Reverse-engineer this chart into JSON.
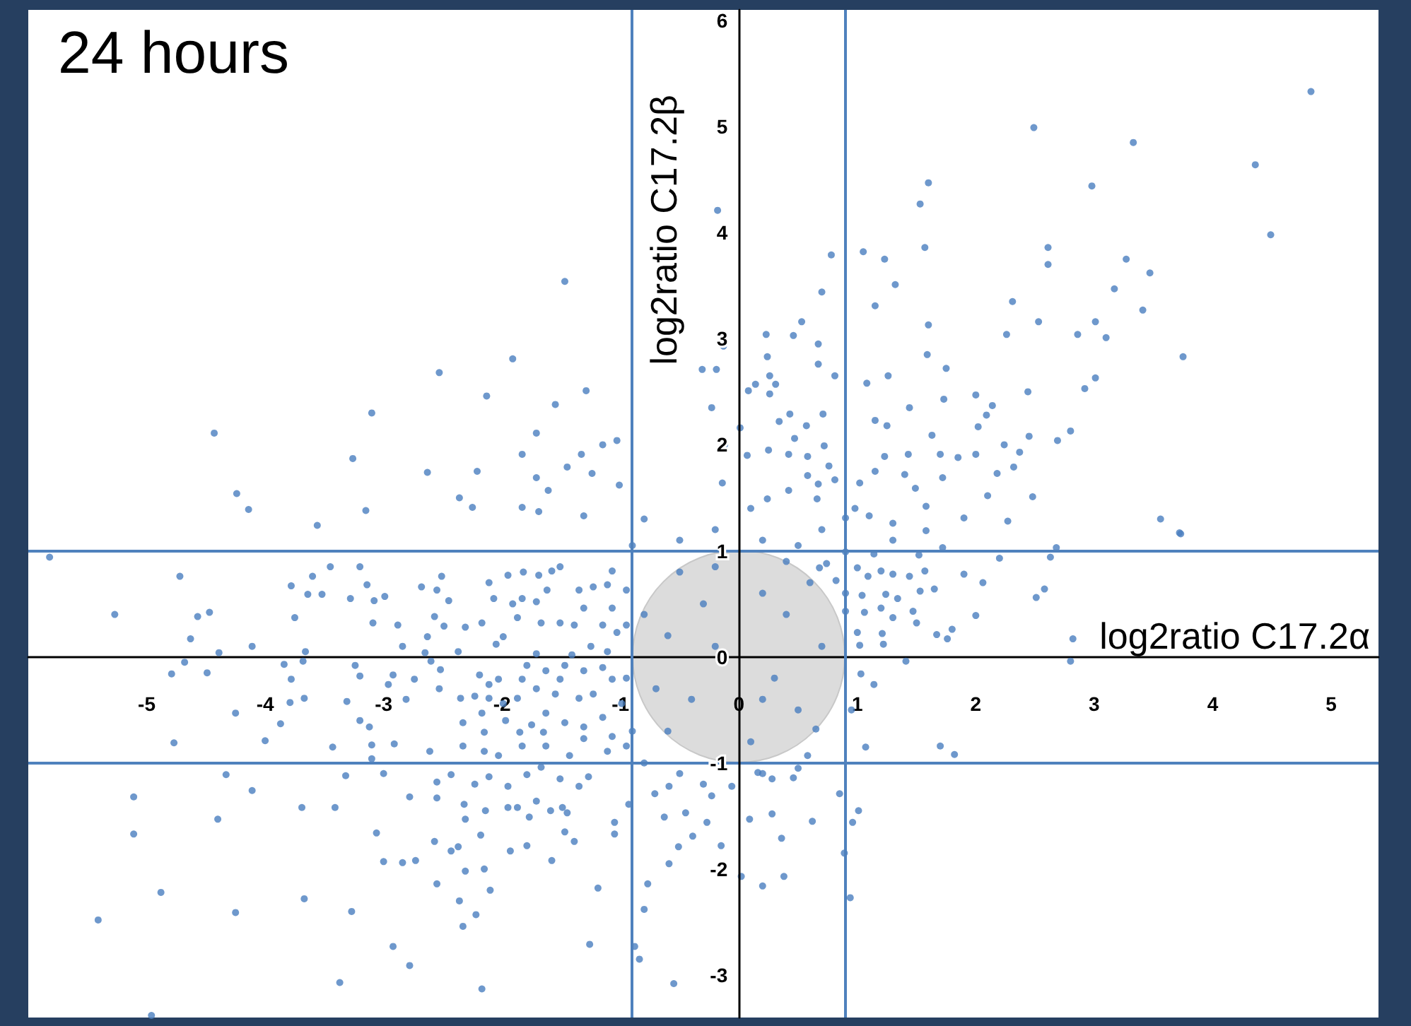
{
  "chart_data": {
    "type": "scatter",
    "title": "24 hours",
    "xlabel": "log2ratio C17.2α",
    "ylabel": "log2ratio C17.2β",
    "color": "#4a7ebf",
    "marker": "circle",
    "grid": false,
    "xlim": [
      -6,
      5.4
    ],
    "ylim": [
      -3.4,
      6.1
    ],
    "xticks": [
      -5,
      -4,
      -3,
      -2,
      -1,
      0,
      1,
      2,
      3,
      4,
      5
    ],
    "yticks": [
      -3,
      -2,
      -1,
      0,
      1,
      2,
      3,
      4,
      5,
      6
    ],
    "ref_lines": [
      {
        "axis": "x",
        "value": -0.9,
        "color": "#4f81bd"
      },
      {
        "axis": "x",
        "value": 0.9,
        "color": "#4f81bd"
      },
      {
        "axis": "y",
        "value": 1,
        "color": "#4f81bd"
      },
      {
        "axis": "y",
        "value": -1,
        "color": "#4f81bd"
      }
    ],
    "x": [
      4.83,
      2.49,
      3.33,
      4.36,
      2.98,
      4.49,
      1.6,
      1.53,
      1.57,
      2.61,
      2.61,
      3.27,
      3.47,
      3.17,
      3.41,
      3.01,
      3.1,
      2.86,
      3.75,
      2.53,
      2.31,
      2.26,
      3.01,
      2.92,
      2.8,
      2.69,
      2.44,
      2.14,
      2.09,
      2.02,
      2.45,
      2.37,
      2.24,
      2.0,
      1.85,
      2.18,
      2.32,
      2.48,
      2.1,
      2.0,
      1.75,
      1.73,
      1.6,
      1.59,
      1.44,
      1.32,
      1.23,
      1.05,
      1.15,
      0.78,
      0.7,
      1.08,
      1.26,
      1.15,
      1.25,
      1.63,
      1.7,
      1.43,
      1.23,
      1.4,
      1.72,
      1.49,
      1.15,
      1.02,
      0.81,
      0.67,
      0.76,
      0.58,
      0.72,
      0.47,
      0.34,
      0.43,
      0.57,
      0.71,
      0.81,
      0.67,
      0.67,
      0.53,
      0.46,
      0.23,
      0.24,
      0.26,
      0.31,
      0.14,
      0.08,
      0.26,
      -0.18,
      -0.13,
      -0.19,
      -0.31,
      -0.23,
      -0.12,
      0.01,
      0.07,
      0.25,
      0.42,
      0.58,
      0.42,
      0.24,
      0.1,
      -0.14,
      0.9,
      0.98,
      1.1,
      1.3,
      1.58,
      1.9,
      2.27,
      3.56,
      3.72,
      0.66,
      -1.47,
      -1.91,
      -2.53,
      -2.13,
      -1.29,
      -3.1,
      -4.43,
      -1.55,
      -1.71,
      -1.83,
      -1.33,
      -1.15,
      -1.03,
      -1.45,
      -1.24,
      -2.21,
      -2.63,
      -3.26,
      -1.71,
      -1.61,
      -2.36,
      -4.24,
      -4.14,
      -3.15,
      -3.56,
      -2.25,
      -1.83,
      -1.69,
      -1.01,
      -1.31,
      -5.82,
      -4.72,
      -5.27,
      -4.57,
      -4.47,
      -4.63,
      -4.39,
      -4.11,
      -4.68,
      -4.49,
      -4.79,
      -4.77,
      -4.25,
      -4.0,
      -3.87,
      -3.78,
      -3.68,
      -3.66,
      -3.84,
      -3.67,
      -3.79,
      -3.75,
      -3.78,
      -3.64,
      -3.52,
      -3.6,
      -3.45,
      -3.2,
      -3.14,
      -3.28,
      -3.08,
      -2.99,
      -3.09,
      -2.88,
      -2.84,
      -3.24,
      -3.2,
      -2.92,
      -2.96,
      -3.31,
      -2.81,
      -3.2,
      -3.12,
      -3.1,
      -2.91,
      -3.43,
      -3.1,
      -2.61,
      -2.68,
      -2.55,
      -2.51,
      -2.45,
      -2.57,
      -2.49,
      -2.63,
      -2.65,
      -2.6,
      -2.74,
      -2.53,
      -2.52,
      -2.37,
      -2.31,
      -2.17,
      -2.05,
      -1.99,
      -2.11,
      -1.95,
      -1.82,
      -1.69,
      -1.58,
      -1.51,
      -2.07,
      -1.91,
      -1.83,
      -1.71,
      -1.62,
      -1.87,
      -1.67,
      -1.51,
      -1.39,
      -1.31,
      -1.35,
      -1.23,
      -1.11,
      -1.07,
      -0.95,
      -1.07,
      -1.15,
      -1.03,
      -1.25,
      -1.11,
      -1.41,
      -1.71,
      -1.79,
      -1.63,
      -1.47,
      -1.51,
      -1.31,
      -1.15,
      -1.07,
      -1.83,
      -2.03,
      -2.11,
      -2.19,
      -1.71,
      -1.55,
      -1.35,
      -1.23,
      -0.99,
      -1.87,
      -1.99,
      -2.11,
      -2.23,
      -2.35,
      -2.33,
      -2.17,
      -2.15,
      -1.97,
      -1.85,
      -1.75,
      -1.65,
      -1.63,
      -1.47,
      -1.31,
      -1.15,
      -1.07,
      -0.95,
      -1.31,
      -1.63,
      -1.83,
      -2.15,
      -2.03,
      -2.33,
      -1.43,
      -1.11,
      -1.67,
      -1.51,
      -1.27,
      -1.35,
      -1.79,
      -1.95,
      -2.11,
      -2.23,
      -2.43,
      -2.55,
      -2.55,
      -2.32,
      -2.14,
      -1.95,
      -1.87,
      -1.77,
      -1.71,
      -1.59,
      -1.49,
      -1.45,
      -1.47,
      -1.39,
      -1.05,
      -1.05,
      -0.93,
      -2.31,
      -2.18,
      -2.57,
      -2.43,
      -2.37,
      -1.93,
      -1.79,
      -1.58,
      -2.31,
      -2.15,
      -2.55,
      -2.1,
      -2.36,
      -2.22,
      -2.33,
      -1.19,
      -1.26,
      -2.17,
      -2.92,
      -2.78,
      -3.37,
      -3.27,
      -3.67,
      -4.25,
      -4.88,
      -5.41,
      -4.96,
      -5.11,
      -5.11,
      -4.4,
      -4.11,
      -4.33,
      -3.69,
      -3.41,
      -3.32,
      -3.06,
      -3.0,
      -2.84,
      -2.73,
      -2.78,
      -3.0,
      -0.88,
      -0.84,
      -0.8,
      -0.77,
      -0.59,
      -0.55,
      -0.51,
      -0.39,
      -0.63,
      -0.71,
      -0.59,
      -0.45,
      0.94,
      0.89,
      1.01,
      0.96,
      0.85,
      0.62,
      0.36,
      0.38,
      0.2,
      0.02,
      0.09,
      0.28,
      0.46,
      0.28,
      0.16,
      -0.06,
      -0.15,
      -0.27,
      -0.23,
      0.58,
      0.65,
      1.07,
      1.7,
      1.82,
      1.14,
      1.03,
      1.41,
      2.8,
      2.82,
      3.73,
      2.0,
      1.76,
      1.8,
      1.67,
      1.5,
      1.47,
      1.21,
      1.22,
      1.02,
      1.0,
      1.04,
      1.24,
      1.34,
      1.2,
      1.06,
      1.3,
      1.65,
      1.53,
      1.44,
      1.3,
      1.2,
      1.09,
      1.0,
      1.14,
      1.3,
      1.52,
      1.57,
      1.9,
      2.06,
      2.2,
      2.63,
      2.68,
      2.58,
      2.51,
      1.72,
      1.58,
      0.68,
      0.74,
      0.82,
      0.9,
      0.9,
      -0.5,
      -0.3,
      -0.6,
      -0.2,
      0.2,
      0.4,
      0.6,
      0.3,
      -0.4,
      0.5,
      -0.6,
      0.1,
      -0.2,
      0.7,
      -0.8,
      -0.7,
      0.2,
      0.4,
      -0.9,
      -0.5,
      -0.2,
      0.2,
      0.5,
      -0.8,
      0.7,
      0.5,
      -0.5,
      -0.8,
      0.2,
      -0.3,
      -0.95,
      -0.95,
      0.95,
      -0.9,
      0.9
    ],
    "values": [
      5.33,
      4.99,
      4.85,
      4.64,
      4.44,
      3.98,
      4.47,
      4.27,
      3.86,
      3.86,
      3.7,
      3.75,
      3.62,
      3.47,
      3.27,
      3.16,
      3.01,
      3.04,
      2.83,
      3.16,
      3.35,
      3.04,
      2.63,
      2.53,
      2.13,
      2.04,
      2.5,
      2.37,
      2.28,
      2.17,
      2.08,
      1.93,
      2.0,
      1.91,
      1.88,
      1.73,
      1.79,
      1.51,
      1.52,
      2.47,
      2.72,
      2.43,
      3.13,
      2.85,
      2.35,
      3.51,
      3.75,
      3.82,
      3.31,
      3.79,
      3.44,
      2.58,
      2.65,
      2.23,
      2.18,
      2.09,
      1.91,
      1.91,
      1.89,
      1.72,
      1.69,
      1.59,
      1.75,
      1.64,
      1.67,
      1.63,
      1.8,
      1.89,
      1.99,
      2.06,
      2.22,
      2.29,
      2.18,
      2.29,
      2.65,
      2.76,
      2.95,
      3.16,
      3.03,
      3.04,
      2.83,
      2.65,
      2.57,
      2.57,
      2.51,
      2.48,
      4.21,
      2.93,
      2.71,
      2.71,
      2.35,
      2.0,
      2.16,
      1.9,
      1.95,
      1.91,
      1.71,
      1.57,
      1.49,
      1.4,
      1.64,
      1.31,
      1.4,
      1.33,
      1.26,
      1.42,
      1.31,
      1.28,
      1.3,
      1.17,
      1.49,
      3.54,
      2.81,
      2.68,
      2.46,
      2.51,
      2.3,
      2.11,
      2.38,
      2.11,
      1.91,
      1.91,
      2.0,
      2.04,
      1.79,
      1.73,
      1.75,
      1.74,
      1.87,
      1.69,
      1.57,
      1.5,
      1.54,
      1.39,
      1.38,
      1.24,
      1.41,
      1.41,
      1.37,
      1.62,
      1.33,
      0.94,
      0.76,
      0.4,
      0.38,
      0.42,
      0.17,
      0.04,
      0.1,
      -0.05,
      -0.15,
      -0.16,
      -0.81,
      -0.53,
      -0.79,
      -0.63,
      -0.21,
      -0.04,
      0.05,
      -0.07,
      -0.39,
      -0.43,
      0.37,
      0.67,
      0.59,
      0.59,
      0.76,
      0.85,
      0.85,
      0.68,
      0.55,
      0.53,
      0.57,
      0.32,
      0.3,
      0.1,
      -0.08,
      -0.18,
      -0.17,
      -0.26,
      -0.42,
      -0.4,
      -0.6,
      -0.66,
      -0.83,
      -0.82,
      -0.85,
      -0.96,
      -0.89,
      0.66,
      0.63,
      0.76,
      0.53,
      0.38,
      0.29,
      0.19,
      0.04,
      -0.04,
      -0.21,
      -0.3,
      -0.12,
      0.05,
      0.28,
      0.32,
      0.12,
      0.19,
      0.7,
      0.77,
      0.8,
      0.77,
      0.81,
      0.85,
      0.55,
      0.5,
      0.55,
      0.52,
      0.63,
      0.37,
      0.32,
      0.32,
      0.3,
      0.46,
      0.63,
      0.66,
      0.68,
      0.81,
      0.63,
      0.46,
      0.3,
      0.23,
      0.1,
      0.05,
      0.02,
      0.03,
      -0.08,
      -0.13,
      -0.08,
      -0.21,
      -0.13,
      -0.1,
      -0.21,
      -0.21,
      -0.21,
      -0.26,
      -0.17,
      -0.3,
      -0.35,
      -0.39,
      -0.35,
      -0.44,
      -0.39,
      -0.44,
      -0.39,
      -0.37,
      -0.39,
      -0.62,
      -0.53,
      -0.71,
      -0.6,
      -0.71,
      -0.64,
      -0.71,
      -0.53,
      -0.62,
      -0.66,
      -0.57,
      -0.75,
      -0.84,
      -0.77,
      -0.84,
      -0.84,
      -0.89,
      -0.93,
      -0.84,
      -0.93,
      -0.89,
      -1.04,
      -1.15,
      -1.13,
      -1.22,
      -1.11,
      -1.22,
      -1.13,
      -1.2,
      -1.11,
      -1.18,
      -1.33,
      -1.39,
      -1.45,
      -1.42,
      -1.42,
      -1.51,
      -1.36,
      -1.45,
      -1.42,
      -1.47,
      -1.65,
      -1.74,
      -1.56,
      -1.67,
      -1.39,
      -1.53,
      -1.68,
      -1.74,
      -1.83,
      -1.79,
      -1.83,
      -1.78,
      -1.92,
      -2.02,
      -2.0,
      -2.14,
      -2.2,
      -2.3,
      -2.43,
      -2.54,
      -2.18,
      -2.71,
      -3.13,
      -2.73,
      -2.91,
      -3.07,
      -2.4,
      -2.28,
      -2.41,
      -2.22,
      -2.48,
      -3.38,
      -1.32,
      -1.67,
      -1.53,
      -1.26,
      -1.11,
      -1.42,
      -1.42,
      -1.12,
      -1.66,
      -1.93,
      -1.94,
      -1.92,
      -1.32,
      -1.1,
      -2.73,
      -2.85,
      -2.38,
      -2.14,
      -1.95,
      -3.08,
      -1.79,
      -1.69,
      -1.51,
      -1.29,
      -1.22,
      -1.47,
      -2.27,
      -1.85,
      -1.45,
      -1.56,
      -1.29,
      -1.55,
      -1.71,
      -2.07,
      -2.16,
      -2.07,
      -1.53,
      -1.48,
      -1.14,
      -1.15,
      -1.09,
      -1.22,
      -1.78,
      -1.56,
      -1.31,
      -0.93,
      -0.68,
      -0.85,
      -0.84,
      -0.92,
      -0.26,
      -0.16,
      -0.04,
      -0.04,
      0.17,
      1.16,
      0.39,
      0.17,
      0.26,
      0.21,
      0.32,
      0.43,
      0.22,
      0.12,
      0.11,
      0.23,
      0.58,
      0.59,
      0.55,
      0.46,
      0.42,
      0.37,
      0.64,
      0.62,
      0.76,
      0.78,
      0.81,
      0.76,
      0.84,
      0.97,
      1.1,
      0.96,
      0.81,
      0.78,
      0.7,
      0.93,
      0.94,
      1.03,
      0.64,
      0.56,
      1.03,
      1.19,
      0.84,
      0.88,
      0.72,
      0.43,
      0.99,
      0.8,
      0.5,
      0.2,
      0.1,
      0.6,
      0.4,
      0.7,
      -0.2,
      -0.4,
      -0.5,
      -0.7,
      -0.8,
      0.85,
      0.1,
      0.4,
      -0.3,
      -0.4,
      0.9,
      1.05,
      1.1,
      1.2,
      1.1,
      1.05,
      1.3,
      1.2,
      -1.05,
      -1.1,
      -1.0,
      -1.1,
      -1.2,
      0.3,
      -0.2,
      -0.5,
      -0.7,
      0.6
    ]
  }
}
